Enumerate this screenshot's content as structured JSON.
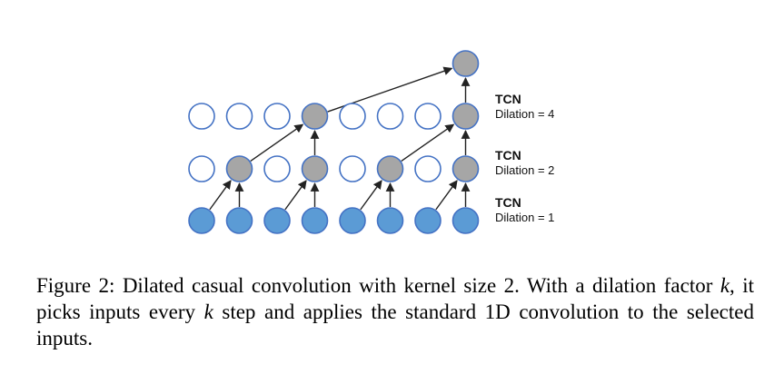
{
  "diagram": {
    "layers": [
      {
        "key": "input",
        "label_title": "TCN",
        "label_value": "Dilation = 1",
        "colors": [
          "blue",
          "blue",
          "blue",
          "blue",
          "blue",
          "blue",
          "blue",
          "blue"
        ]
      },
      {
        "key": "d2",
        "label_title": "TCN",
        "label_value": "Dilation = 2",
        "colors": [
          "white",
          "gray",
          "white",
          "gray",
          "white",
          "gray",
          "white",
          "gray"
        ]
      },
      {
        "key": "d4",
        "label_title": "TCN",
        "label_value": "Dilation = 4",
        "colors": [
          "white",
          "white",
          "white",
          "gray",
          "white",
          "white",
          "white",
          "gray"
        ]
      },
      {
        "key": "output",
        "colors": [
          "gray"
        ]
      }
    ],
    "connections": [
      {
        "from": [
          "input",
          0
        ],
        "to": [
          "d2",
          1
        ]
      },
      {
        "from": [
          "input",
          1
        ],
        "to": [
          "d2",
          1
        ]
      },
      {
        "from": [
          "input",
          2
        ],
        "to": [
          "d2",
          3
        ]
      },
      {
        "from": [
          "input",
          3
        ],
        "to": [
          "d2",
          3
        ]
      },
      {
        "from": [
          "input",
          4
        ],
        "to": [
          "d2",
          5
        ]
      },
      {
        "from": [
          "input",
          5
        ],
        "to": [
          "d2",
          5
        ]
      },
      {
        "from": [
          "input",
          6
        ],
        "to": [
          "d2",
          7
        ]
      },
      {
        "from": [
          "input",
          7
        ],
        "to": [
          "d2",
          7
        ]
      },
      {
        "from": [
          "d2",
          1
        ],
        "to": [
          "d4",
          3
        ]
      },
      {
        "from": [
          "d2",
          3
        ],
        "to": [
          "d4",
          3
        ]
      },
      {
        "from": [
          "d2",
          5
        ],
        "to": [
          "d4",
          7
        ]
      },
      {
        "from": [
          "d2",
          7
        ],
        "to": [
          "d4",
          7
        ]
      },
      {
        "from": [
          "d4",
          3
        ],
        "to": [
          "output",
          0
        ]
      },
      {
        "from": [
          "d4",
          7
        ],
        "to": [
          "output",
          0
        ]
      }
    ],
    "colors": {
      "blue": "#5b9bd5",
      "gray": "#a6a6a6",
      "white": "#ffffff",
      "outline": "#4472c4",
      "arrow": "#222222"
    }
  },
  "caption": {
    "p1": "Figure 2: Dilated casual convolution with kernel size 2. With a dilation factor ",
    "k1": "k",
    "p2": ", it picks inputs every ",
    "k2": "k",
    "p3": " step and applies the standard 1D convolution to the selected inputs."
  }
}
